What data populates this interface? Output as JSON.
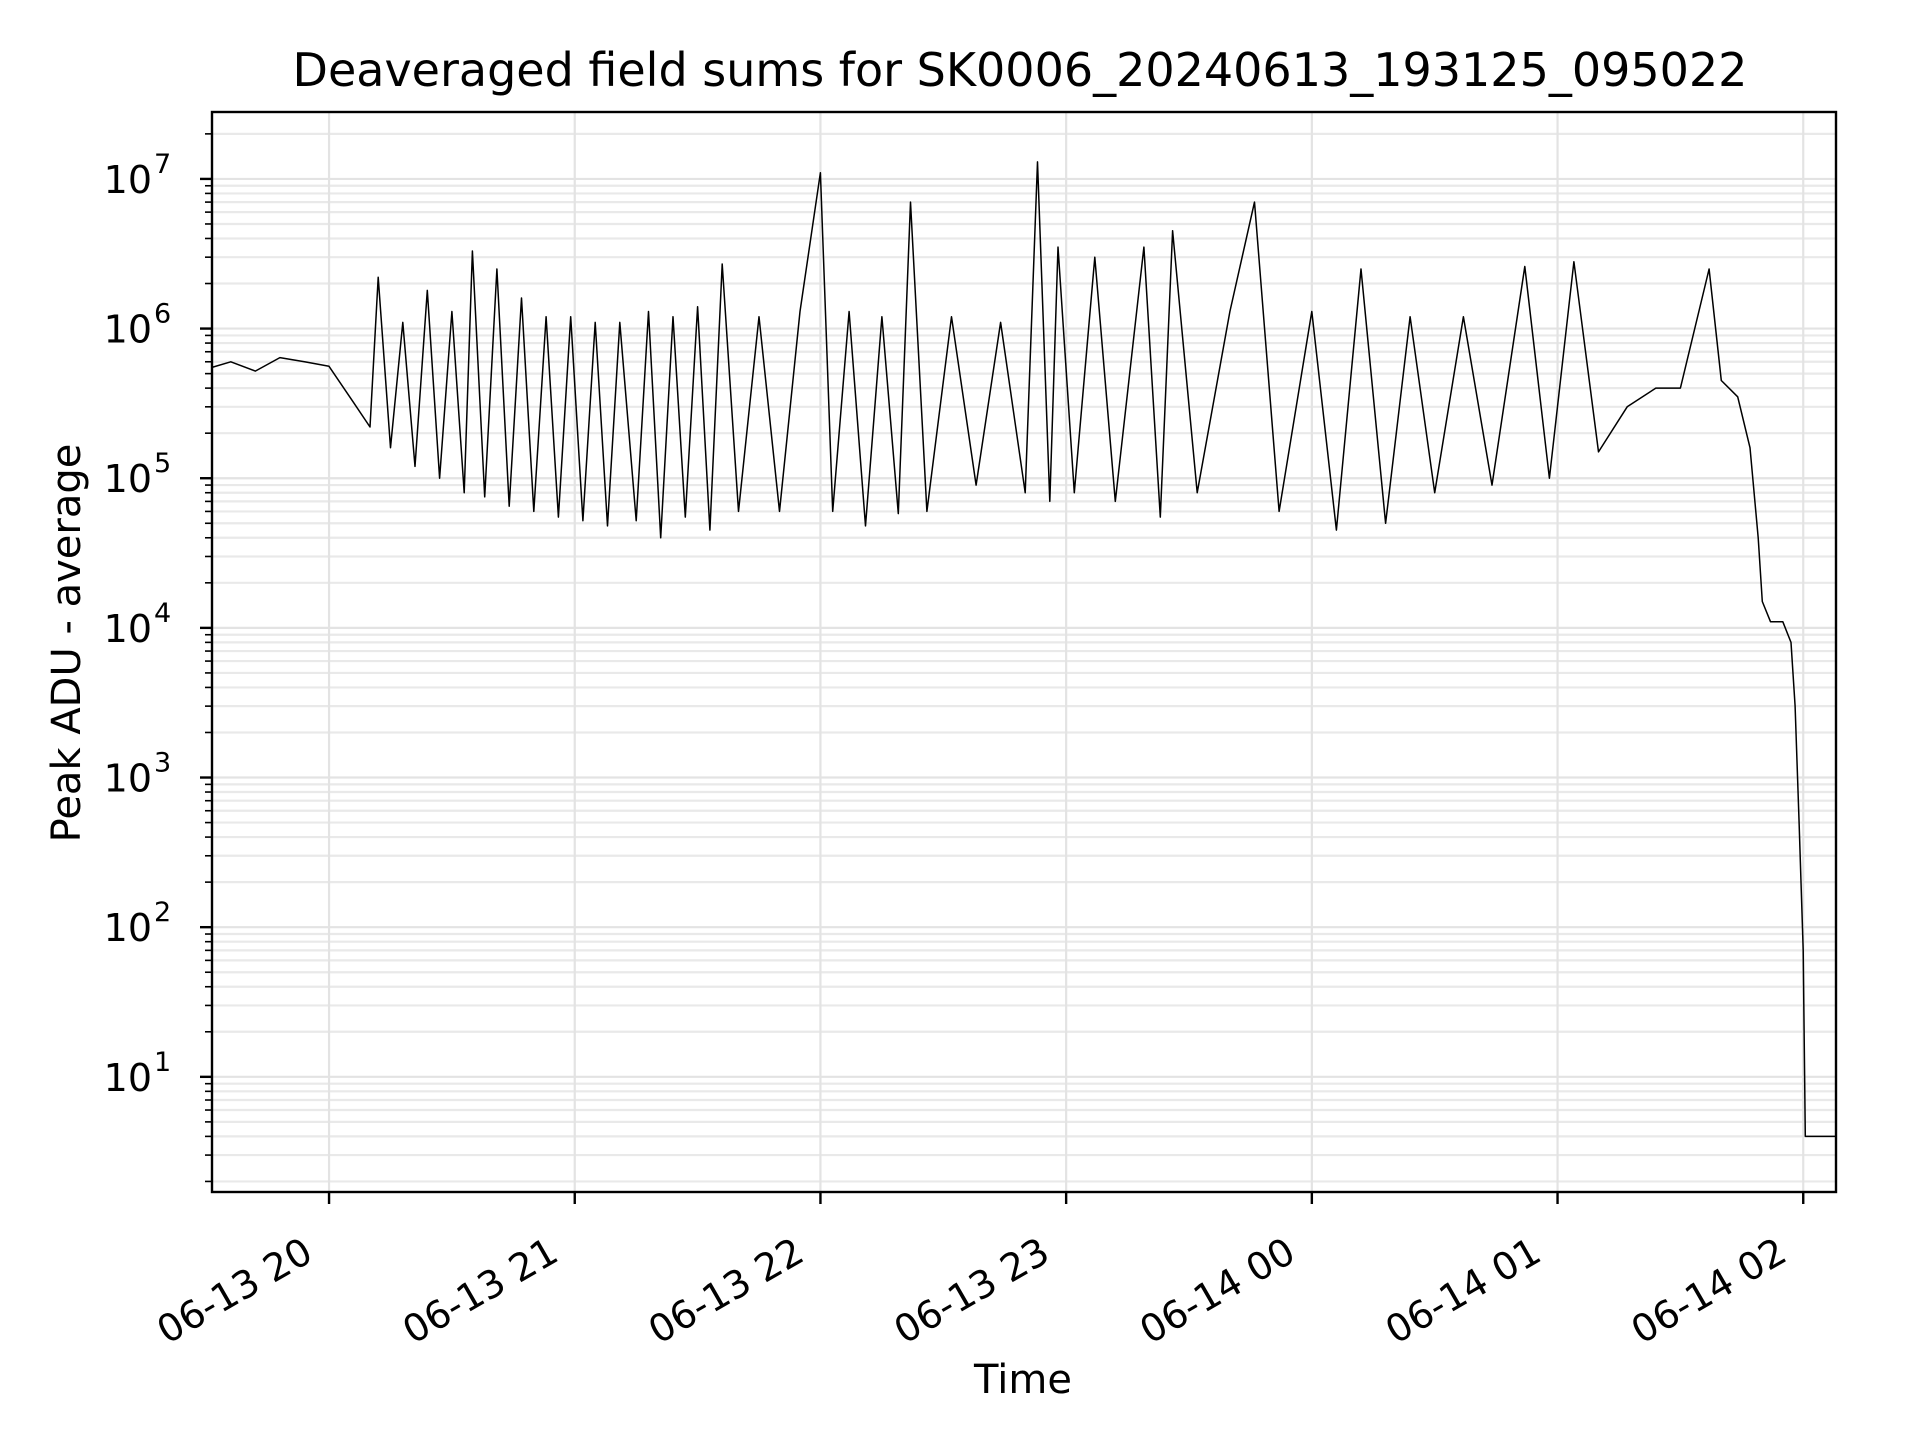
{
  "chart_data": {
    "type": "line",
    "title": "Deaveraged field sums for SK0006_20240613_193125_095022",
    "xlabel": "Time",
    "ylabel": "Peak ADU - average",
    "yscale": "log",
    "grid": true,
    "xlim": [
      "2024-06-13 19:31:25",
      "2024-06-14 02:08:00"
    ],
    "ylim": [
      1.7,
      28000000
    ],
    "x_ticks": [
      {
        "value": "2024-06-13 20:00",
        "label": "06-13 20"
      },
      {
        "value": "2024-06-13 21:00",
        "label": "06-13 21"
      },
      {
        "value": "2024-06-13 22:00",
        "label": "06-13 22"
      },
      {
        "value": "2024-06-13 23:00",
        "label": "06-13 23"
      },
      {
        "value": "2024-06-14 00:00",
        "label": "06-14 00"
      },
      {
        "value": "2024-06-14 01:00",
        "label": "06-14 01"
      },
      {
        "value": "2024-06-14 02:00",
        "label": "06-14 02"
      }
    ],
    "y_ticks": [
      {
        "value": 10,
        "base": "10",
        "exp": "1"
      },
      {
        "value": 100,
        "base": "10",
        "exp": "2"
      },
      {
        "value": 1000,
        "base": "10",
        "exp": "3"
      },
      {
        "value": 10000,
        "base": "10",
        "exp": "4"
      },
      {
        "value": 100000,
        "base": "10",
        "exp": "5"
      },
      {
        "value": 1000000,
        "base": "10",
        "exp": "6"
      },
      {
        "value": 10000000,
        "base": "10",
        "exp": "7"
      }
    ],
    "series": [
      {
        "color": "#000000",
        "points": [
          [
            "2024-06-13 19:31:25",
            550000
          ],
          [
            "2024-06-13 19:36:00",
            600000
          ],
          [
            "2024-06-13 19:42:00",
            520000
          ],
          [
            "2024-06-13 19:48:00",
            640000
          ],
          [
            "2024-06-13 19:54:00",
            600000
          ],
          [
            "2024-06-13 20:00:00",
            560000
          ],
          [
            "2024-06-13 20:06:00",
            320000
          ],
          [
            "2024-06-13 20:10:00",
            220000
          ],
          [
            "2024-06-13 20:12:00",
            2200000
          ],
          [
            "2024-06-13 20:15:00",
            160000
          ],
          [
            "2024-06-13 20:18:00",
            1100000
          ],
          [
            "2024-06-13 20:21:00",
            120000
          ],
          [
            "2024-06-13 20:24:00",
            1800000
          ],
          [
            "2024-06-13 20:27:00",
            100000
          ],
          [
            "2024-06-13 20:30:00",
            1300000
          ],
          [
            "2024-06-13 20:33:00",
            80000
          ],
          [
            "2024-06-13 20:35:00",
            3300000
          ],
          [
            "2024-06-13 20:38:00",
            75000
          ],
          [
            "2024-06-13 20:41:00",
            2500000
          ],
          [
            "2024-06-13 20:44:00",
            65000
          ],
          [
            "2024-06-13 20:47:00",
            1600000
          ],
          [
            "2024-06-13 20:50:00",
            60000
          ],
          [
            "2024-06-13 20:53:00",
            1200000
          ],
          [
            "2024-06-13 20:56:00",
            55000
          ],
          [
            "2024-06-13 20:59:00",
            1200000
          ],
          [
            "2024-06-13 21:02:00",
            52000
          ],
          [
            "2024-06-13 21:05:00",
            1100000
          ],
          [
            "2024-06-13 21:08:00",
            48000
          ],
          [
            "2024-06-13 21:11:00",
            1100000
          ],
          [
            "2024-06-13 21:15:00",
            52000
          ],
          [
            "2024-06-13 21:18:00",
            1300000
          ],
          [
            "2024-06-13 21:21:00",
            40000
          ],
          [
            "2024-06-13 21:24:00",
            1200000
          ],
          [
            "2024-06-13 21:27:00",
            55000
          ],
          [
            "2024-06-13 21:30:00",
            1400000
          ],
          [
            "2024-06-13 21:33:00",
            45000
          ],
          [
            "2024-06-13 21:36:00",
            2700000
          ],
          [
            "2024-06-13 21:40:00",
            60000
          ],
          [
            "2024-06-13 21:45:00",
            1200000
          ],
          [
            "2024-06-13 21:50:00",
            60000
          ],
          [
            "2024-06-13 21:55:00",
            1300000
          ],
          [
            "2024-06-13 22:00:00",
            11000000
          ],
          [
            "2024-06-13 22:03:00",
            60000
          ],
          [
            "2024-06-13 22:07:00",
            1300000
          ],
          [
            "2024-06-13 22:11:00",
            48000
          ],
          [
            "2024-06-13 22:15:00",
            1200000
          ],
          [
            "2024-06-13 22:19:00",
            58000
          ],
          [
            "2024-06-13 22:22:00",
            7000000
          ],
          [
            "2024-06-13 22:26:00",
            60000
          ],
          [
            "2024-06-13 22:32:00",
            1200000
          ],
          [
            "2024-06-13 22:38:00",
            90000
          ],
          [
            "2024-06-13 22:44:00",
            1100000
          ],
          [
            "2024-06-13 22:50:00",
            80000
          ],
          [
            "2024-06-13 22:53:00",
            13000000
          ],
          [
            "2024-06-13 22:56:00",
            70000
          ],
          [
            "2024-06-13 22:58:00",
            3500000
          ],
          [
            "2024-06-13 23:02:00",
            80000
          ],
          [
            "2024-06-13 23:07:00",
            3000000
          ],
          [
            "2024-06-13 23:12:00",
            70000
          ],
          [
            "2024-06-13 23:19:00",
            3500000
          ],
          [
            "2024-06-13 23:23:00",
            55000
          ],
          [
            "2024-06-13 23:26:00",
            4500000
          ],
          [
            "2024-06-13 23:32:00",
            80000
          ],
          [
            "2024-06-13 23:40:00",
            1300000
          ],
          [
            "2024-06-13 23:46:00",
            7000000
          ],
          [
            "2024-06-13 23:52:00",
            60000
          ],
          [
            "2024-06-14 00:00:00",
            1300000
          ],
          [
            "2024-06-14 00:06:00",
            45000
          ],
          [
            "2024-06-14 00:12:00",
            2500000
          ],
          [
            "2024-06-14 00:18:00",
            50000
          ],
          [
            "2024-06-14 00:24:00",
            1200000
          ],
          [
            "2024-06-14 00:30:00",
            80000
          ],
          [
            "2024-06-14 00:37:00",
            1200000
          ],
          [
            "2024-06-14 00:44:00",
            90000
          ],
          [
            "2024-06-14 00:52:00",
            2600000
          ],
          [
            "2024-06-14 00:58:00",
            100000
          ],
          [
            "2024-06-14 01:04:00",
            2800000
          ],
          [
            "2024-06-14 01:10:00",
            150000
          ],
          [
            "2024-06-14 01:17:00",
            300000
          ],
          [
            "2024-06-14 01:24:00",
            400000
          ],
          [
            "2024-06-14 01:30:00",
            400000
          ],
          [
            "2024-06-14 01:37:00",
            2500000
          ],
          [
            "2024-06-14 01:40:00",
            450000
          ],
          [
            "2024-06-14 01:44:00",
            350000
          ],
          [
            "2024-06-14 01:47:00",
            160000
          ],
          [
            "2024-06-14 01:49:00",
            40000
          ],
          [
            "2024-06-14 01:50:00",
            15000
          ],
          [
            "2024-06-14 01:52:00",
            11000
          ],
          [
            "2024-06-14 01:55:00",
            11000
          ],
          [
            "2024-06-14 01:57:00",
            8000
          ],
          [
            "2024-06-14 01:58:00",
            3000
          ],
          [
            "2024-06-14 01:59:00",
            500
          ],
          [
            "2024-06-14 02:00:00",
            70
          ],
          [
            "2024-06-14 02:00:30",
            4
          ],
          [
            "2024-06-14 02:08:00",
            4
          ]
        ]
      }
    ]
  }
}
